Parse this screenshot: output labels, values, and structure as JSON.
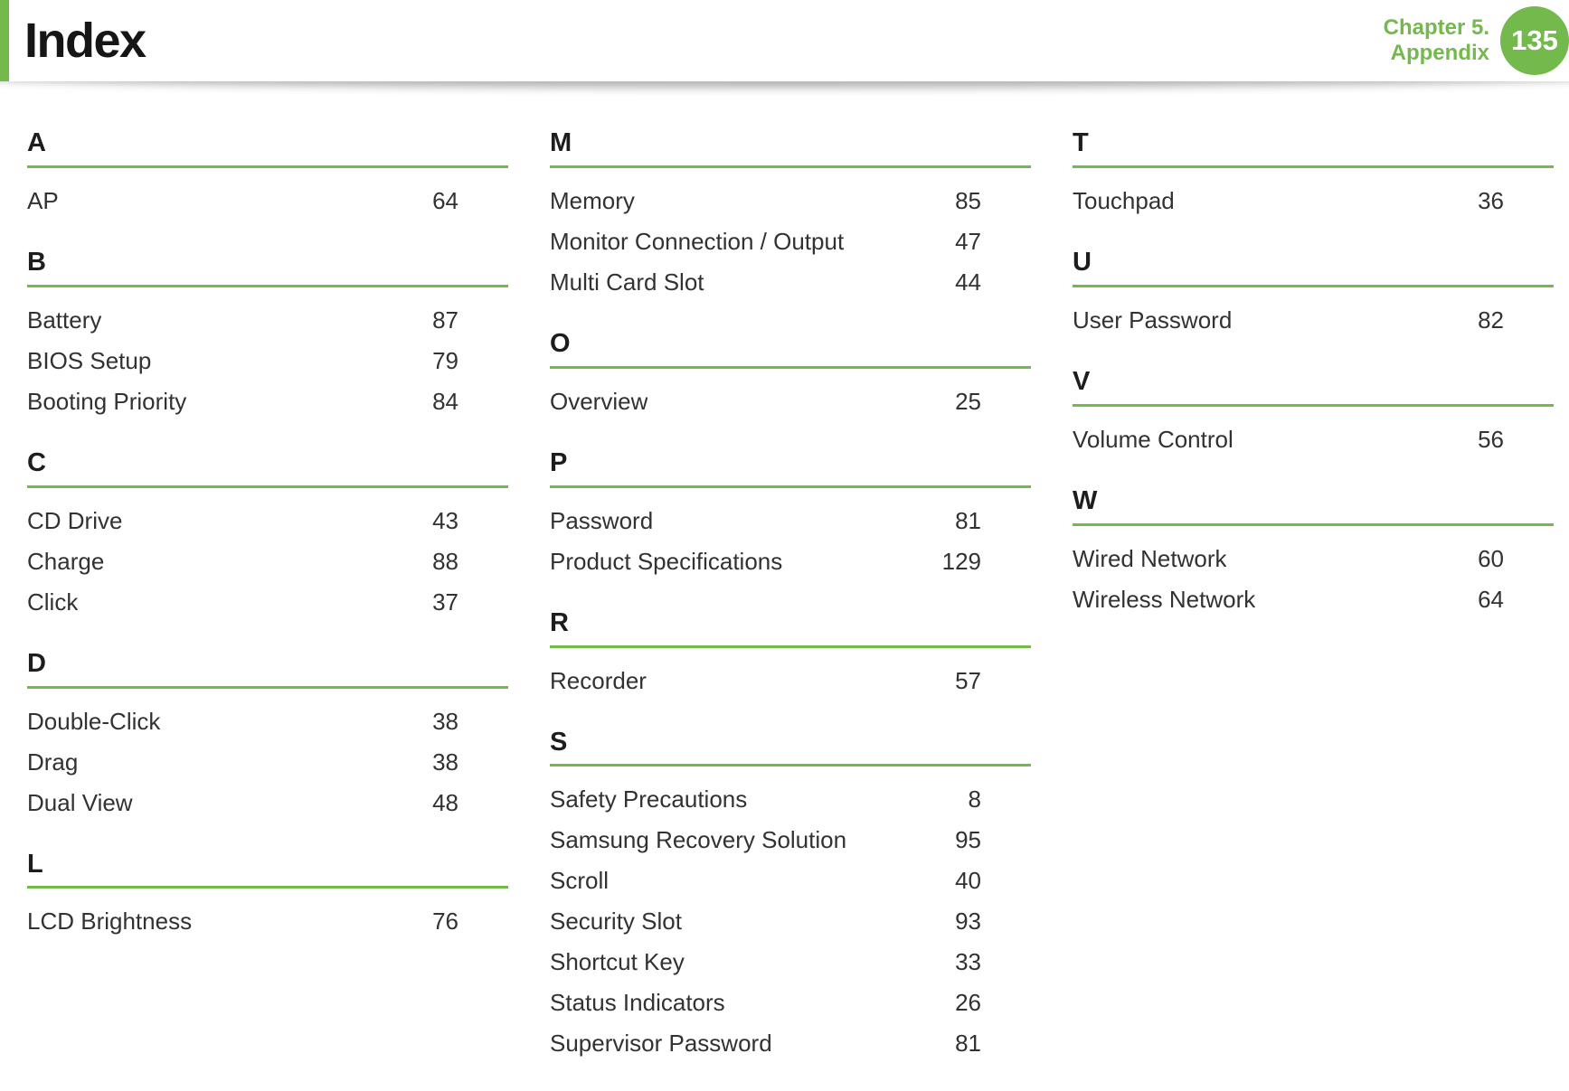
{
  "header": {
    "title": "Index",
    "chapter_line1": "Chapter 5.",
    "chapter_line2": "Appendix",
    "page_number": "135"
  },
  "colors": {
    "accent_green": "#74b94c"
  },
  "index": {
    "columns": [
      {
        "sections": [
          {
            "letter": "A",
            "entries": [
              {
                "term": "AP",
                "page": "64"
              }
            ]
          },
          {
            "letter": "B",
            "entries": [
              {
                "term": "Battery",
                "page": "87"
              },
              {
                "term": "BIOS Setup",
                "page": "79"
              },
              {
                "term": "Booting Priority",
                "page": "84"
              }
            ]
          },
          {
            "letter": "C",
            "entries": [
              {
                "term": "CD Drive",
                "page": "43"
              },
              {
                "term": "Charge",
                "page": "88"
              },
              {
                "term": "Click",
                "page": "37"
              }
            ]
          },
          {
            "letter": "D",
            "entries": [
              {
                "term": "Double-Click",
                "page": "38"
              },
              {
                "term": "Drag",
                "page": "38"
              },
              {
                "term": "Dual View",
                "page": "48"
              }
            ]
          },
          {
            "letter": "L",
            "entries": [
              {
                "term": "LCD Brightness",
                "page": "76"
              }
            ]
          }
        ]
      },
      {
        "sections": [
          {
            "letter": "M",
            "entries": [
              {
                "term": "Memory",
                "page": "85"
              },
              {
                "term": "Monitor Connection / Output",
                "page": "47"
              },
              {
                "term": "Multi Card Slot",
                "page": "44"
              }
            ]
          },
          {
            "letter": "O",
            "entries": [
              {
                "term": "Overview",
                "page": "25"
              }
            ]
          },
          {
            "letter": "P",
            "entries": [
              {
                "term": "Password",
                "page": "81"
              },
              {
                "term": "Product Specifications",
                "page": "129"
              }
            ]
          },
          {
            "letter": "R",
            "entries": [
              {
                "term": "Recorder",
                "page": "57"
              }
            ]
          },
          {
            "letter": "S",
            "entries": [
              {
                "term": "Safety Precautions",
                "page": "8"
              },
              {
                "term": "Samsung Recovery Solution",
                "page": "95"
              },
              {
                "term": "Scroll",
                "page": "40"
              },
              {
                "term": "Security Slot",
                "page": "93"
              },
              {
                "term": "Shortcut Key",
                "page": "33"
              },
              {
                "term": "Status Indicators",
                "page": "26"
              },
              {
                "term": "Supervisor Password",
                "page": "81"
              }
            ]
          }
        ]
      },
      {
        "sections": [
          {
            "letter": "T",
            "entries": [
              {
                "term": "Touchpad",
                "page": "36"
              }
            ]
          },
          {
            "letter": "U",
            "entries": [
              {
                "term": "User Password",
                "page": "82"
              }
            ]
          },
          {
            "letter": "V",
            "entries": [
              {
                "term": "Volume Control",
                "page": "56"
              }
            ]
          },
          {
            "letter": "W",
            "entries": [
              {
                "term": "Wired Network",
                "page": "60"
              },
              {
                "term": "Wireless Network",
                "page": "64"
              }
            ]
          }
        ]
      }
    ]
  }
}
